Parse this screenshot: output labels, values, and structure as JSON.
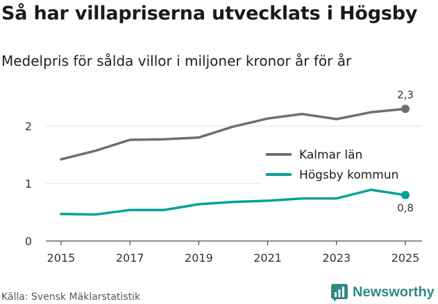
{
  "header": {
    "title": "Så har villapriserna utvecklats i Högsby",
    "subtitle": "Medelpris för sålda villor i miljoner kronor år för år"
  },
  "footer": {
    "source": "Källa: Svensk Mäklarstatistik",
    "brand": "Newsworthy"
  },
  "colors": {
    "kalmar": "#6d6e71",
    "hogsby": "#00a199",
    "grid": "#dddddd",
    "brand": "#2f8a86"
  },
  "chart_data": {
    "type": "line",
    "x": [
      2015,
      2016,
      2017,
      2018,
      2019,
      2020,
      2021,
      2022,
      2023,
      2024,
      2025
    ],
    "x_ticks": [
      2015,
      2017,
      2019,
      2021,
      2023,
      2025
    ],
    "y_ticks": [
      0,
      1,
      2
    ],
    "ylim": [
      0,
      2.5
    ],
    "grid": "horizontal",
    "legend_position": "right",
    "series": [
      {
        "name": "Kalmar län",
        "color": "#6d6e71",
        "values": [
          1.42,
          1.57,
          1.76,
          1.77,
          1.8,
          1.99,
          2.13,
          2.21,
          2.12,
          2.24,
          2.3
        ],
        "end_label": "2,3"
      },
      {
        "name": "Högsby kommun",
        "color": "#00a199",
        "values": [
          0.47,
          0.46,
          0.54,
          0.54,
          0.64,
          0.68,
          0.7,
          0.74,
          0.74,
          0.89,
          0.8
        ],
        "end_label": "0,8"
      }
    ]
  }
}
